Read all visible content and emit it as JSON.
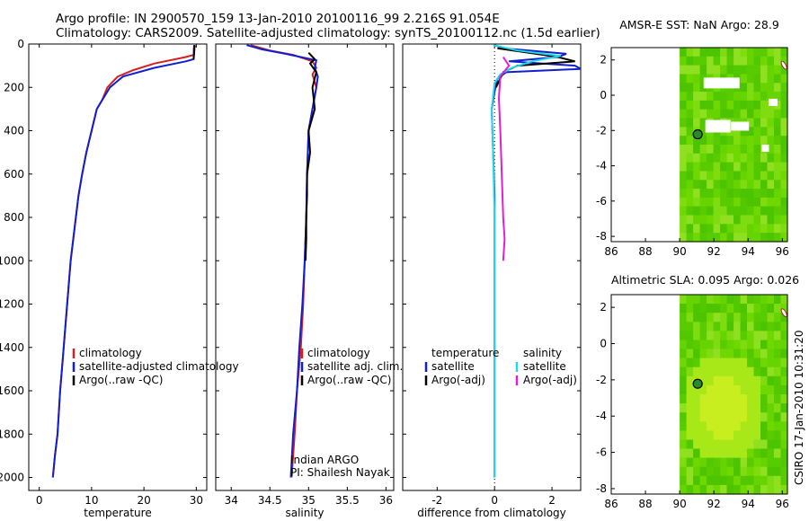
{
  "header": {
    "line1": "Argo profile: IN 2900570_159 13-Jan-2010 20100116_99 2.216S 91.054E",
    "line2": "Climatology: CARS2009. Satellite-adjusted climatology: synTS_20100112.nc (1.5d earlier)"
  },
  "colors": {
    "climatology": "#d42020",
    "satellite": "#1020d0",
    "argo": "#000000",
    "cyan": "#22d8e8",
    "magenta": "#e020d0"
  },
  "chart_data": [
    {
      "type": "line",
      "name": "temperature-profile",
      "xlabel": "temperature",
      "xlim": [
        -2,
        32
      ],
      "ylim": [
        2060,
        0
      ],
      "xticks": [
        0,
        10,
        20,
        30
      ],
      "yticks": [
        0,
        200,
        400,
        600,
        800,
        1000,
        1200,
        1400,
        1600,
        1800,
        2000
      ],
      "legend": [
        "climatology",
        "satellite-adjusted climatology",
        "Argo(..raw -QC)"
      ],
      "series": [
        {
          "name": "climatology",
          "color": "#d42020",
          "points": [
            [
              29.6,
              5
            ],
            [
              29.5,
              50
            ],
            [
              28,
              60
            ],
            [
              22,
              90
            ],
            [
              18,
              120
            ],
            [
              15,
              150
            ],
            [
              13,
              200
            ],
            [
              12,
              260
            ],
            [
              11,
              300
            ],
            [
              10,
              400
            ],
            [
              9,
              500
            ],
            [
              8.2,
              600
            ],
            [
              7.5,
              700
            ],
            [
              7,
              800
            ],
            [
              6.5,
              900
            ],
            [
              6,
              1000
            ],
            [
              5.5,
              1150
            ],
            [
              5,
              1300
            ],
            [
              4.5,
              1450
            ],
            [
              4,
              1600
            ],
            [
              3.5,
              1800
            ],
            [
              3,
              1900
            ],
            [
              2.6,
              2000
            ]
          ]
        },
        {
          "name": "satellite",
          "color": "#1020d0",
          "points": [
            [
              29.6,
              5
            ],
            [
              29.5,
              70
            ],
            [
              28,
              80
            ],
            [
              22,
              110
            ],
            [
              16,
              150
            ],
            [
              13.5,
              200
            ],
            [
              12,
              260
            ],
            [
              11,
              300
            ],
            [
              10,
              400
            ],
            [
              9,
              500
            ],
            [
              8.2,
              600
            ],
            [
              7.5,
              700
            ],
            [
              7,
              800
            ],
            [
              6.5,
              900
            ],
            [
              6,
              1000
            ],
            [
              5.5,
              1150
            ],
            [
              5,
              1300
            ],
            [
              4.5,
              1450
            ],
            [
              4,
              1600
            ],
            [
              3.5,
              1800
            ],
            [
              3,
              1900
            ],
            [
              2.6,
              2000
            ]
          ]
        },
        {
          "name": "argo",
          "color": "#000000",
          "points": [
            [
              29.7,
              5
            ],
            [
              29.6,
              40
            ],
            [
              29.5,
              70
            ]
          ]
        }
      ]
    },
    {
      "type": "line",
      "name": "salinity-profile",
      "xlabel": "salinity",
      "xlim": [
        33.8,
        36.1
      ],
      "ylim": [
        2060,
        0
      ],
      "xticks": [
        34,
        34.5,
        35,
        35.5,
        36
      ],
      "legend": [
        "climatology",
        "satellite adj. clim.",
        "Argo(..raw -QC)"
      ],
      "series": [
        {
          "name": "climatology",
          "color": "#d42020",
          "points": [
            [
              34.25,
              5
            ],
            [
              34.5,
              30
            ],
            [
              34.8,
              50
            ],
            [
              35.05,
              80
            ],
            [
              35.1,
              110
            ],
            [
              35.05,
              140
            ],
            [
              35.1,
              200
            ],
            [
              35.05,
              300
            ],
            [
              35.0,
              400
            ],
            [
              34.98,
              600
            ],
            [
              34.97,
              800
            ],
            [
              34.95,
              1000
            ],
            [
              34.93,
              1200
            ],
            [
              34.9,
              1400
            ],
            [
              34.85,
              1600
            ],
            [
              34.82,
              1800
            ],
            [
              34.78,
              2000
            ]
          ]
        },
        {
          "name": "satellite",
          "color": "#1020d0",
          "points": [
            [
              34.2,
              5
            ],
            [
              34.4,
              25
            ],
            [
              34.7,
              45
            ],
            [
              35.1,
              75
            ],
            [
              35.08,
              110
            ],
            [
              35.12,
              150
            ],
            [
              35.1,
              200
            ],
            [
              35.05,
              300
            ],
            [
              35.0,
              400
            ],
            [
              34.98,
              600
            ],
            [
              34.97,
              800
            ],
            [
              34.95,
              1000
            ],
            [
              34.92,
              1200
            ],
            [
              34.88,
              1400
            ],
            [
              34.85,
              1600
            ],
            [
              34.8,
              1800
            ],
            [
              34.77,
              2000
            ]
          ]
        },
        {
          "name": "argo",
          "color": "#000000",
          "points": [
            [
              35.0,
              40
            ],
            [
              35.08,
              70
            ],
            [
              35.02,
              90
            ],
            [
              35.1,
              130
            ],
            [
              35.05,
              200
            ],
            [
              35.08,
              300
            ],
            [
              35.0,
              400
            ],
            [
              35.02,
              500
            ],
            [
              34.98,
              600
            ],
            [
              34.98,
              700
            ],
            [
              34.97,
              800
            ],
            [
              34.97,
              900
            ],
            [
              34.96,
              1000
            ]
          ]
        }
      ]
    },
    {
      "type": "line",
      "name": "difference-profile",
      "xlabel": "difference from climatology",
      "xlim": [
        -3.2,
        3.0
      ],
      "ylim": [
        2060,
        0
      ],
      "xticks": [
        -2,
        0,
        2
      ],
      "legend": [
        "temperature",
        "satellite",
        "Argo(-adj)",
        "salinity",
        "satellite",
        "Argo(-adj)"
      ],
      "series": [
        {
          "name": "temperature satellite",
          "color": "#1020d0",
          "points": [
            [
              0,
              5
            ],
            [
              0.3,
              20
            ],
            [
              2.5,
              45
            ],
            [
              2.2,
              60
            ],
            [
              0.5,
              80
            ],
            [
              2.8,
              100
            ],
            [
              3.0,
              115
            ],
            [
              0.4,
              130
            ],
            [
              0.1,
              160
            ],
            [
              0,
              220
            ],
            [
              -0.1,
              300
            ],
            [
              -0.05,
              500
            ],
            [
              0,
              700
            ],
            [
              0,
              1000
            ],
            [
              0,
              1400
            ],
            [
              0,
              1700
            ],
            [
              0,
              2000
            ]
          ]
        },
        {
          "name": "temperature argo",
          "color": "#000000",
          "points": [
            [
              0.1,
              20
            ],
            [
              1.2,
              40
            ],
            [
              2.2,
              60
            ],
            [
              2.8,
              80
            ],
            [
              0.8,
              100
            ],
            [
              0.3,
              130
            ],
            [
              0.05,
              200
            ]
          ]
        },
        {
          "name": "salinity satellite",
          "color": "#22d8e8",
          "points": [
            [
              -0.05,
              5
            ],
            [
              0.8,
              30
            ],
            [
              2.3,
              55
            ],
            [
              1.3,
              80
            ],
            [
              0.6,
              110
            ],
            [
              0.2,
              140
            ],
            [
              0,
              180
            ],
            [
              -0.1,
              300
            ],
            [
              -0.05,
              500
            ],
            [
              0,
              800
            ],
            [
              0,
              1100
            ],
            [
              0,
              1500
            ],
            [
              0,
              2000
            ]
          ]
        },
        {
          "name": "salinity argo",
          "color": "#e020d0",
          "points": [
            [
              0.3,
              60
            ],
            [
              0.5,
              100
            ],
            [
              0.2,
              150
            ],
            [
              0.15,
              250
            ],
            [
              0.2,
              400
            ],
            [
              0.25,
              600
            ],
            [
              0.3,
              800
            ],
            [
              0.35,
              900
            ],
            [
              0.3,
              1000
            ]
          ]
        }
      ]
    }
  ],
  "maps": [
    {
      "title": "AMSR-E SST: NaN Argo: 28.9",
      "xticks": [
        86,
        88,
        90,
        92,
        94,
        96
      ],
      "yticks": [
        2,
        0,
        -2,
        -4,
        -6,
        -8
      ],
      "marker": {
        "lon": 91.054,
        "lat": -2.216
      }
    },
    {
      "title": "Altimetric SLA: 0.095 Argo: 0.026",
      "xticks": [
        86,
        88,
        90,
        92,
        94,
        96
      ],
      "yticks": [
        2,
        0,
        -2,
        -4,
        -6,
        -8
      ],
      "marker": {
        "lon": 91.054,
        "lat": -2.216
      }
    }
  ],
  "annotations": {
    "program": "Indian ARGO",
    "pi": "PI: Shailesh Nayak",
    "stamp": "CSIRO 17-Jan-2010 10:31:20"
  }
}
